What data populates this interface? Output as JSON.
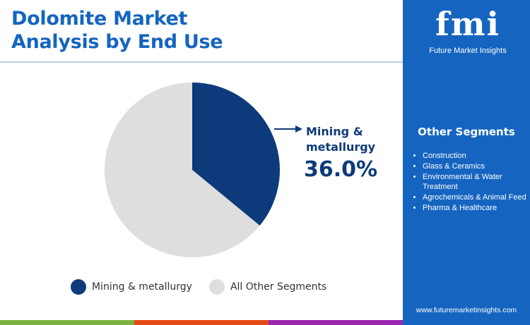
{
  "title_line1": "Dolomite Market",
  "title_line2": "Analysis by End Use",
  "chart_data": {
    "type": "pie",
    "slices": [
      {
        "label": "Mining & metallurgy",
        "value": 36.0,
        "color": "#0d3a7a"
      },
      {
        "label": "All Other Segments",
        "value": 64.0,
        "color": "#dedede"
      }
    ],
    "callout": {
      "label_line1": "Mining &",
      "label_line2": "metallurgy",
      "value_text": "36.0%"
    },
    "legend_position": "bottom"
  },
  "legend": {
    "items": [
      {
        "label": "Mining & metallurgy",
        "color": "#0d3a7a"
      },
      {
        "label": "All Other Segments",
        "color": "#dedede"
      }
    ]
  },
  "side_panel": {
    "logo_mark": "fmi",
    "logo_text": "Future Market Insights",
    "other_segments_heading": "Other Segments",
    "other_segments": [
      "Construction",
      "Glass & Ceramics",
      "Environmental & Water Treatment",
      "Agrochemicals & Animal Feed",
      "Pharma & Healthcare"
    ],
    "website": "www.futuremarketinsights.com",
    "background_color": "#1565c0"
  },
  "footer_colors": [
    "#7cb342",
    "#e64a19",
    "#9c27b0"
  ]
}
